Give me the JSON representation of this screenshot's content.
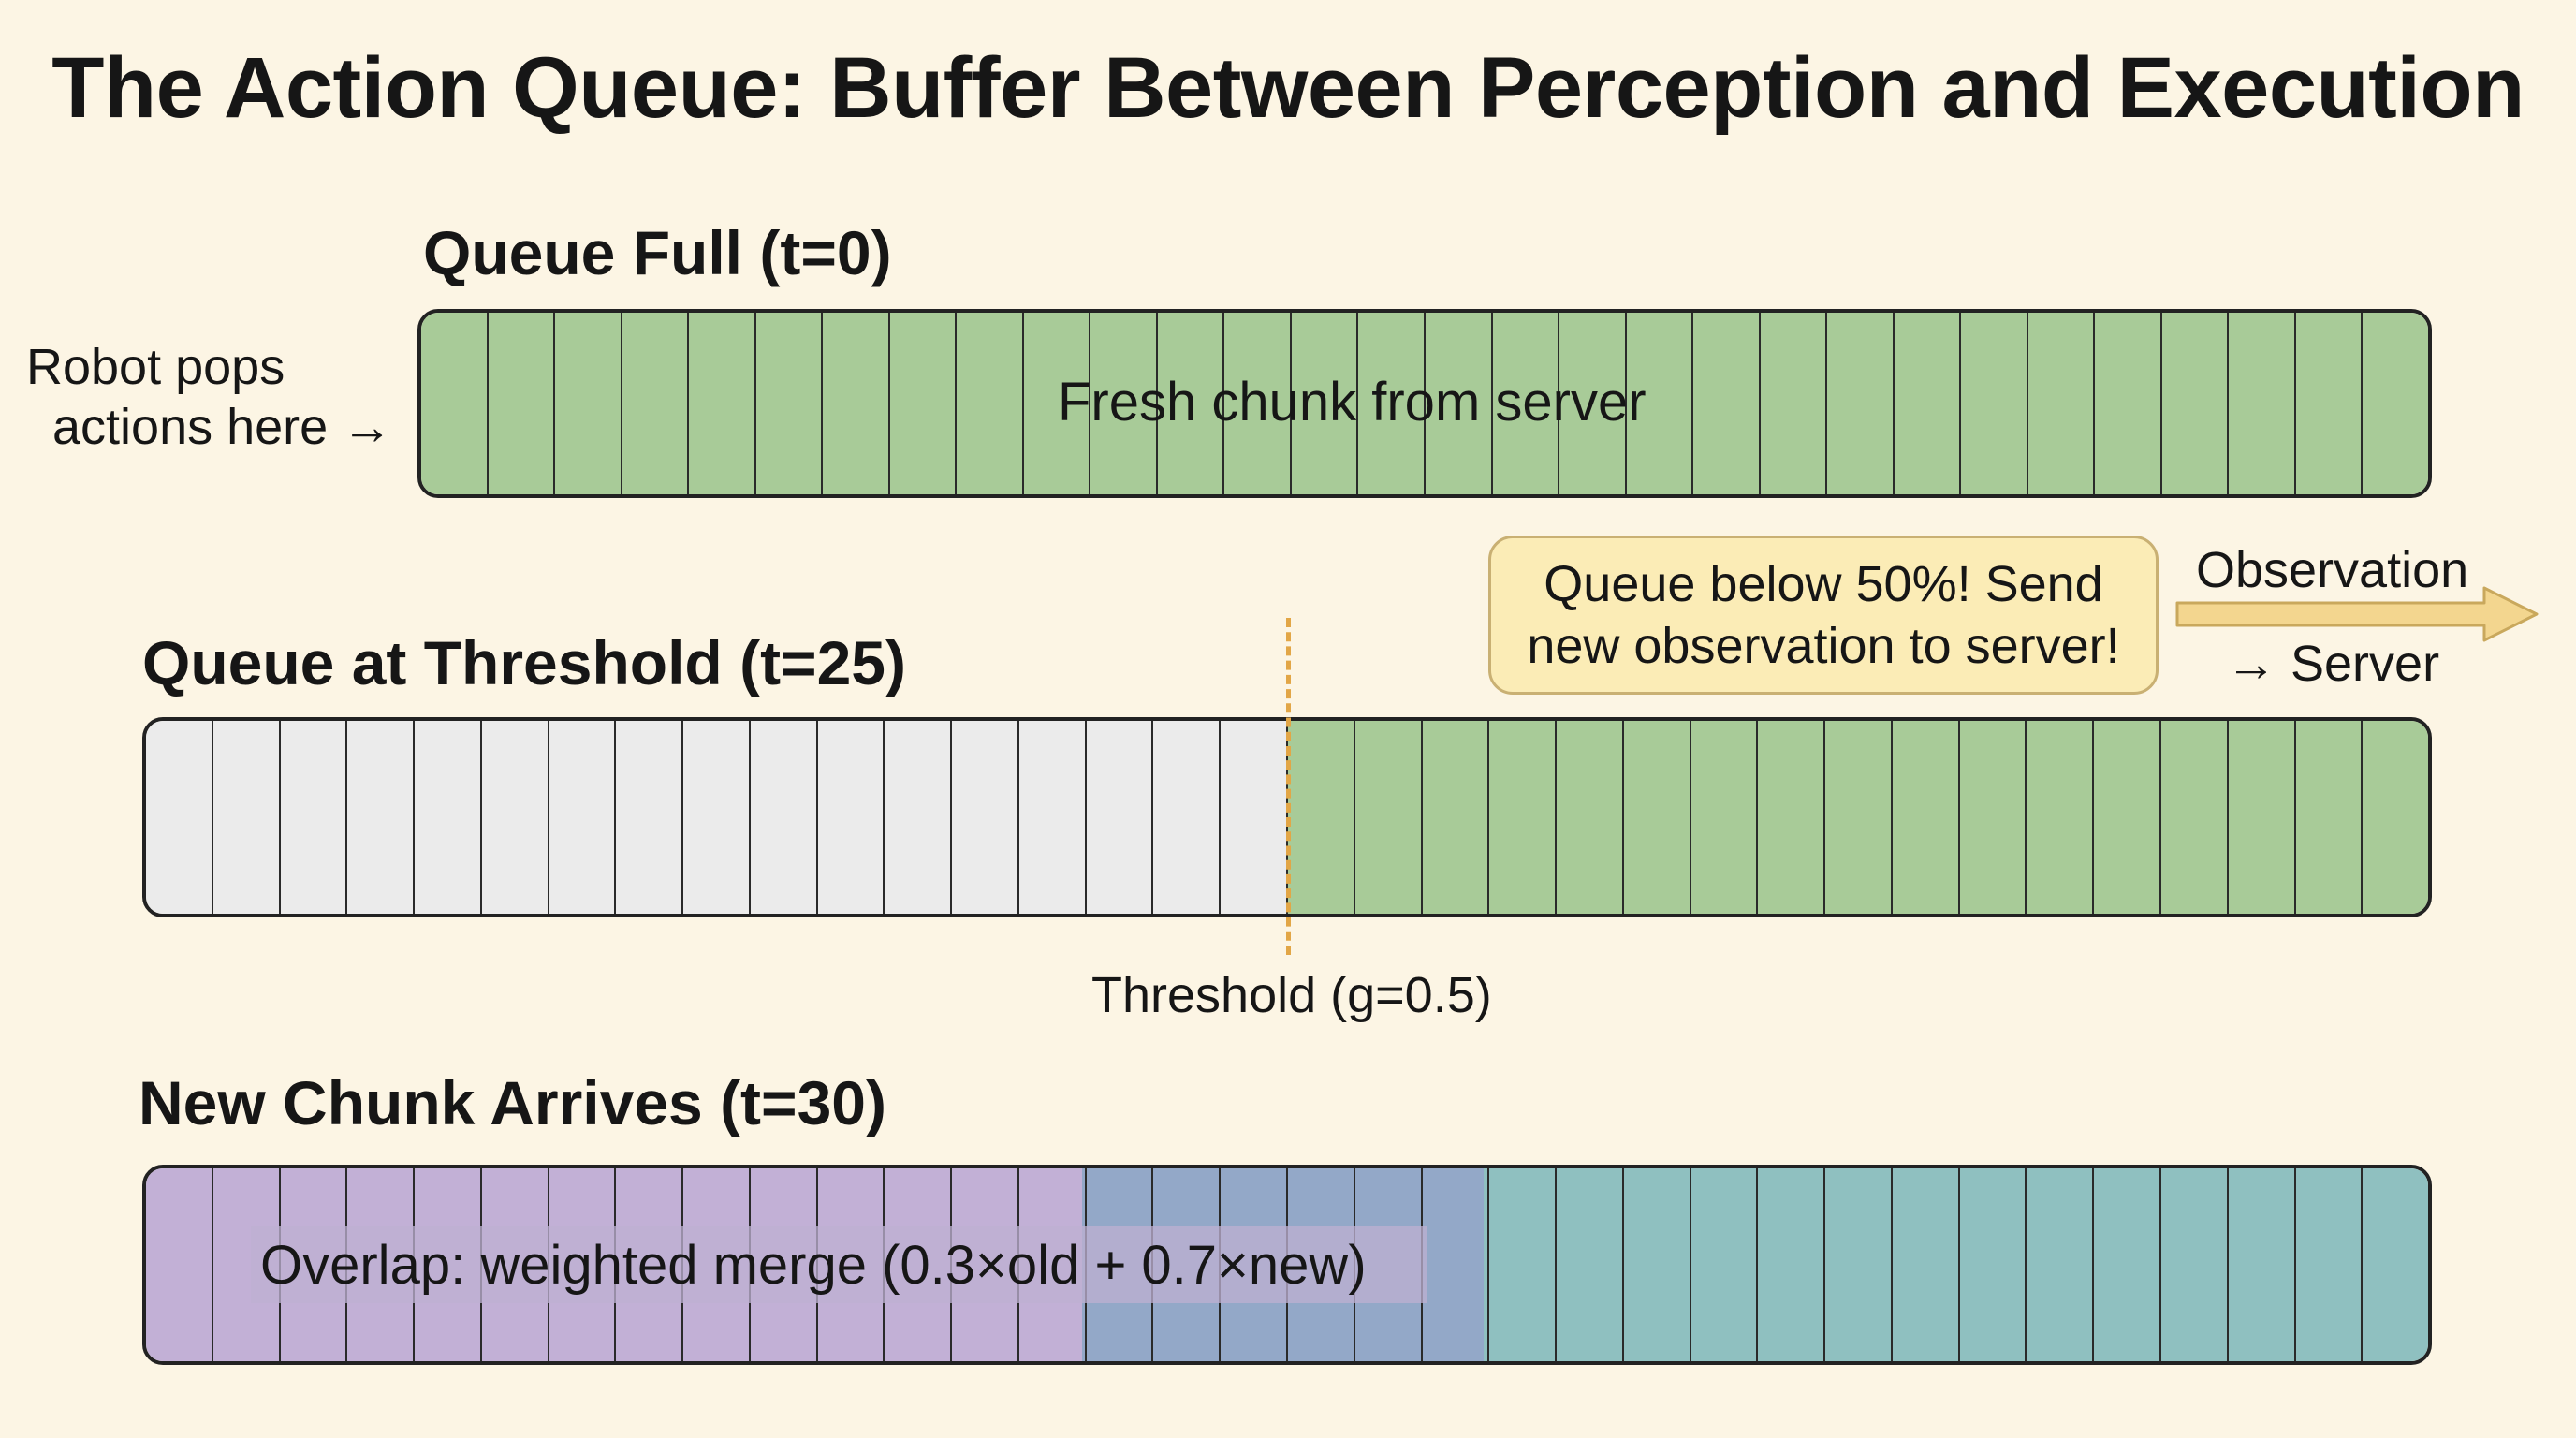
{
  "title": "The Action Queue: Buffer Between Perception and Execution",
  "colors": {
    "background": "#fcf5e4",
    "fresh": "#a8cb98",
    "consumed": "#ebebeb",
    "old_overlap": "#c2b0d6",
    "merged": "#93a8c8",
    "new_chunk": "#8fc0c0",
    "threshold": "#e2a646",
    "callout_fill": "#fbecb6"
  },
  "rows": {
    "full": {
      "label": "Queue Full (t=0)",
      "text": "Fresh chunk from server",
      "side_label": [
        "Robot pops",
        "actions here →"
      ]
    },
    "threshold": {
      "label": "Queue at Threshold (t=25)",
      "consumed_fraction": 0.5,
      "threshold_label": "Threshold (g=0.5)",
      "callout": [
        "Queue below 50%! Send",
        "new observation to server!"
      ],
      "arrow_label_top": "Observation",
      "arrow_label_bottom": "→ Server"
    },
    "arrives": {
      "label": "New Chunk Arrives (t=30)",
      "text": "Overlap: weighted merge  (0.3×old + 0.7×new)"
    }
  }
}
